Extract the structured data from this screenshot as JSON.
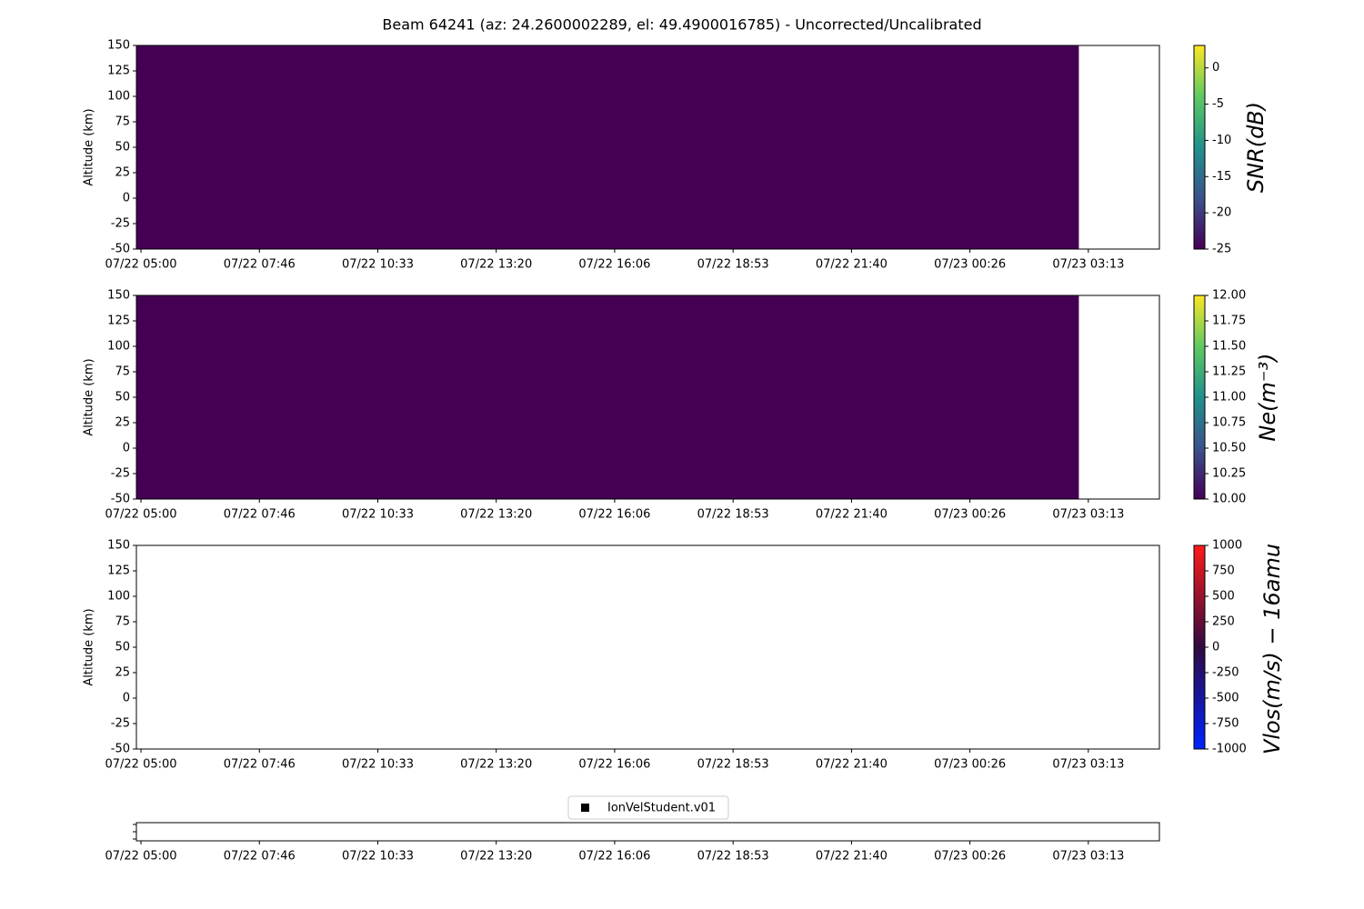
{
  "title": "Beam 64241 (az: 24.2600002289, el: 49.4900016785) - Uncorrected/Uncalibrated",
  "chart_data": [
    {
      "type": "heatmap",
      "ylabel": "Altitude (km)",
      "ylim": [
        -50,
        150
      ],
      "yticks": [
        -50,
        -25,
        0,
        25,
        50,
        75,
        100,
        125,
        150
      ],
      "xlim": [
        4.893,
        28.889
      ],
      "xticks": [
        {
          "value": 5,
          "label": "07/22 05:00"
        },
        {
          "value": 7.778,
          "label": "07/22 07:46"
        },
        {
          "value": 10.556,
          "label": "07/22 10:33"
        },
        {
          "value": 13.333,
          "label": "07/22 13:20"
        },
        {
          "value": 16.111,
          "label": "07/22 16:06"
        },
        {
          "value": 18.889,
          "label": "07/22 18:53"
        },
        {
          "value": 21.667,
          "label": "07/22 21:40"
        },
        {
          "value": 24.444,
          "label": "07/23 00:26"
        },
        {
          "value": 27.222,
          "label": "07/23 03:13"
        }
      ],
      "x_edges": [
        4.893,
        27.0
      ],
      "y_edges": [
        -50,
        150
      ],
      "values": [
        [
          -25
        ]
      ],
      "clim": [
        -25,
        3.1
      ],
      "cticks": [
        -25,
        -20,
        -15,
        -10,
        -5,
        0
      ],
      "colorbar_label": "SNR(dB)",
      "colormap": [
        "#440154",
        "#3b528b",
        "#21918c",
        "#5ec962",
        "#fde725"
      ]
    },
    {
      "type": "heatmap",
      "ylabel": "Altitude (km)",
      "ylim": [
        -50,
        150
      ],
      "yticks": [
        -50,
        -25,
        0,
        25,
        50,
        75,
        100,
        125,
        150
      ],
      "xlim": [
        4.893,
        28.889
      ],
      "xticks": [
        {
          "value": 5,
          "label": "07/22 05:00"
        },
        {
          "value": 7.778,
          "label": "07/22 07:46"
        },
        {
          "value": 10.556,
          "label": "07/22 10:33"
        },
        {
          "value": 13.333,
          "label": "07/22 13:20"
        },
        {
          "value": 16.111,
          "label": "07/22 16:06"
        },
        {
          "value": 18.889,
          "label": "07/22 18:53"
        },
        {
          "value": 21.667,
          "label": "07/22 21:40"
        },
        {
          "value": 24.444,
          "label": "07/23 00:26"
        },
        {
          "value": 27.222,
          "label": "07/23 03:13"
        }
      ],
      "x_edges": [
        4.893,
        27.0
      ],
      "y_edges": [
        -50,
        150
      ],
      "values": [
        [
          10
        ]
      ],
      "clim": [
        10,
        12
      ],
      "cticks": [
        {
          "value": 10,
          "label": "10.00"
        },
        {
          "value": 10.25,
          "label": "10.25"
        },
        {
          "value": 10.5,
          "label": "10.50"
        },
        {
          "value": 10.75,
          "label": "10.75"
        },
        {
          "value": 11,
          "label": "11.00"
        },
        {
          "value": 11.25,
          "label": "11.25"
        },
        {
          "value": 11.5,
          "label": "11.50"
        },
        {
          "value": 11.75,
          "label": "11.75"
        },
        {
          "value": 12,
          "label": "12.00"
        }
      ],
      "colorbar_label": "Ne(m⁻³)",
      "colormap": [
        "#440154",
        "#3b528b",
        "#21918c",
        "#5ec962",
        "#fde725"
      ]
    },
    {
      "type": "heatmap",
      "ylabel": "Altitude (km)",
      "ylim": [
        -50,
        150
      ],
      "yticks": [
        -50,
        -25,
        0,
        25,
        50,
        75,
        100,
        125,
        150
      ],
      "xlim": [
        4.893,
        28.889
      ],
      "xticks": [
        {
          "value": 5,
          "label": "07/22 05:00"
        },
        {
          "value": 7.778,
          "label": "07/22 07:46"
        },
        {
          "value": 10.556,
          "label": "07/22 10:33"
        },
        {
          "value": 13.333,
          "label": "07/22 13:20"
        },
        {
          "value": 16.111,
          "label": "07/22 16:06"
        },
        {
          "value": 18.889,
          "label": "07/22 18:53"
        },
        {
          "value": 21.667,
          "label": "07/22 21:40"
        },
        {
          "value": 24.444,
          "label": "07/23 00:26"
        },
        {
          "value": 27.222,
          "label": "07/23 03:13"
        }
      ],
      "x_edges": [],
      "y_edges": [],
      "values": [],
      "clim": [
        -1000,
        1000
      ],
      "cticks": [
        -1000,
        -750,
        -500,
        -250,
        0,
        250,
        500,
        750,
        1000
      ],
      "colorbar_label": "Vlos(m/s) − 16amu",
      "colormap": [
        "#0022ff",
        "#300a40",
        "#ff1a1a"
      ]
    },
    {
      "type": "line",
      "xlim": [
        4.893,
        28.889
      ],
      "xticks": [
        {
          "value": 5,
          "label": "07/22 05:00"
        },
        {
          "value": 7.778,
          "label": "07/22 07:46"
        },
        {
          "value": 10.556,
          "label": "07/22 10:33"
        },
        {
          "value": 13.333,
          "label": "07/22 13:20"
        },
        {
          "value": 16.111,
          "label": "07/22 16:06"
        },
        {
          "value": 18.889,
          "label": "07/22 18:53"
        },
        {
          "value": 21.667,
          "label": "07/22 21:40"
        },
        {
          "value": 24.444,
          "label": "07/23 00:26"
        },
        {
          "value": 27.222,
          "label": "07/23 03:13"
        }
      ],
      "x": [],
      "series": [
        {
          "name": "IonVelStudent.v01",
          "color": "#000000",
          "values": []
        }
      ],
      "legend": "upper center"
    }
  ]
}
